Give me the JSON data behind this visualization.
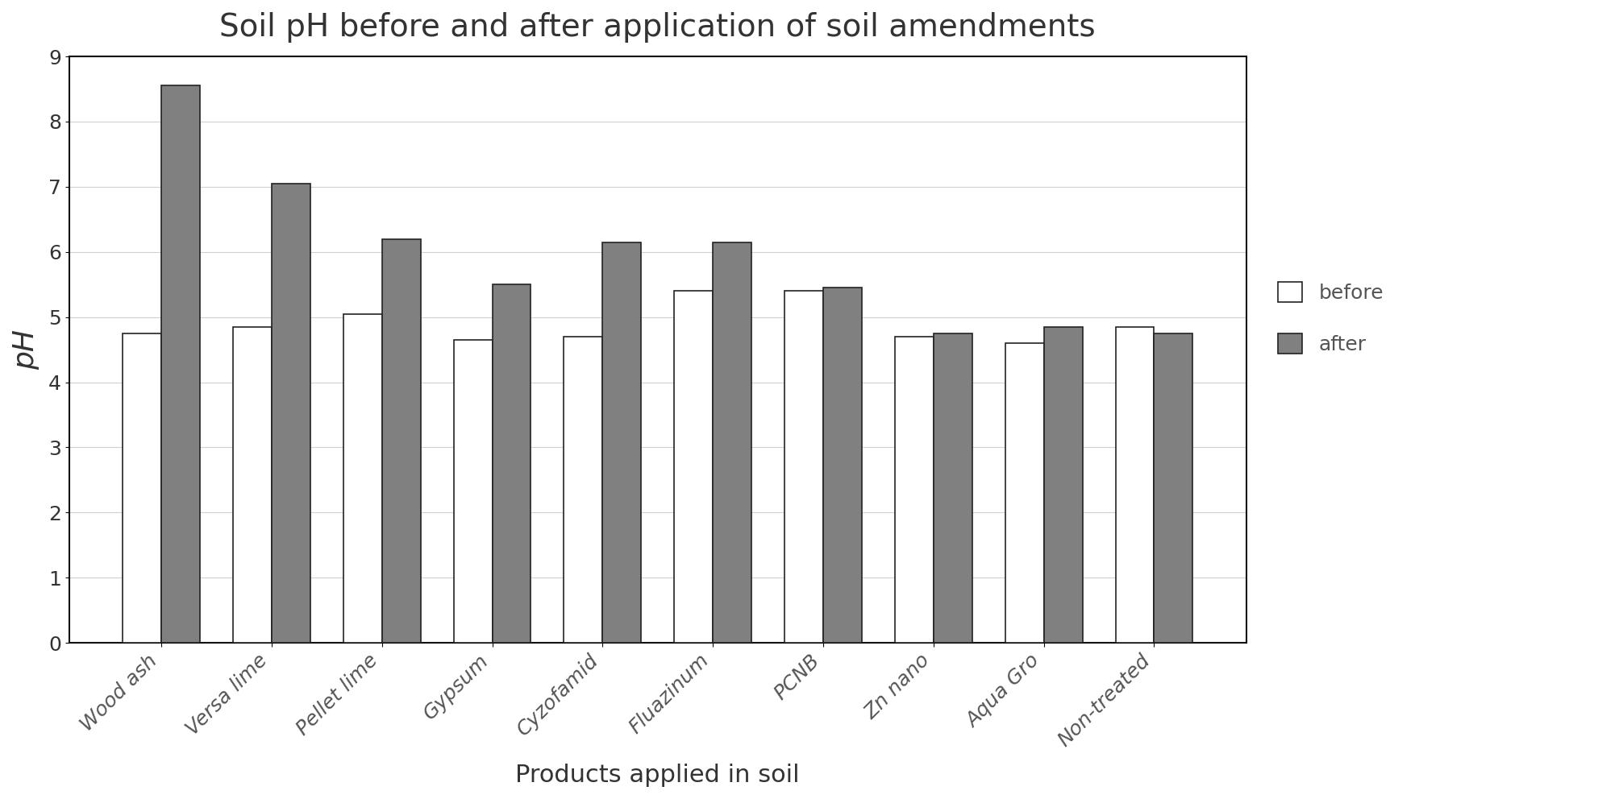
{
  "title": "Soil pH before and after application of soil amendments",
  "xlabel": "Products applied in soil",
  "ylabel": "pH",
  "categories": [
    "Wood ash",
    "Versa lime",
    "Pellet lime",
    "Gypsum",
    "Cyzofamid",
    "Fluazinum",
    "PCNB",
    "Zn nano",
    "Aqua Gro",
    "Non-treated"
  ],
  "before": [
    4.75,
    4.85,
    5.05,
    4.65,
    4.7,
    5.4,
    5.4,
    4.7,
    4.6,
    4.85
  ],
  "after": [
    8.55,
    7.05,
    6.2,
    5.5,
    6.15,
    6.15,
    5.45,
    4.75,
    4.85,
    4.75
  ],
  "before_color": "#ffffff",
  "after_color": "#808080",
  "bar_edge_color": "#222222",
  "ylim": [
    0,
    9
  ],
  "yticks": [
    0,
    1,
    2,
    3,
    4,
    5,
    6,
    7,
    8,
    9
  ],
  "legend_labels": [
    "before",
    "after"
  ],
  "title_fontsize": 28,
  "label_fontsize": 20,
  "tick_fontsize": 18,
  "legend_fontsize": 18,
  "background_color": "#ffffff",
  "plot_background_color": "#ffffff",
  "grid_color": "#d0d0d0",
  "text_color": "#555555"
}
